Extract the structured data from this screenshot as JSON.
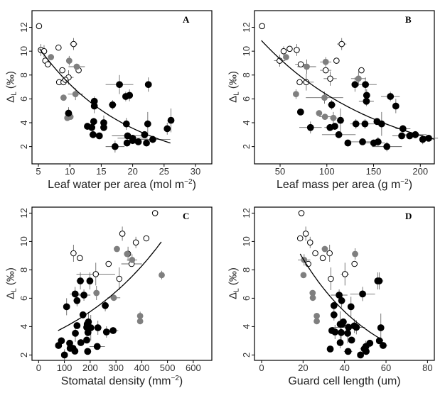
{
  "chart_data": [
    {
      "panel": "A",
      "type": "scatter",
      "xlabel": {
        "pre": "Leaf water per area (mol m",
        "sup": "−2",
        "post": ")"
      },
      "ylabel": {
        "main": "Δ",
        "sub": "L",
        "unit": "(‰)"
      },
      "xlim": [
        3.98,
        32.6
      ],
      "ylim": [
        0.55,
        13.4
      ],
      "xticks": [
        5,
        10,
        15,
        20,
        25,
        30
      ],
      "yticks": [
        2,
        4,
        6,
        8,
        10,
        12
      ],
      "fit": {
        "type": "exponential",
        "a": 14.8,
        "b": -0.0716,
        "x_range": [
          5.2,
          26
        ]
      },
      "points": {
        "open": [
          [
            5.1,
            12.1
          ],
          [
            5.4,
            10.1,
            0,
            0.5
          ],
          [
            5.9,
            10.0,
            0.5,
            0.5
          ],
          [
            6.1,
            9.2
          ],
          [
            6.5,
            8.9
          ],
          [
            8.2,
            10.3
          ],
          [
            10.6,
            10.6,
            0.6,
            0.5
          ],
          [
            8.8,
            8.4
          ],
          [
            11.4,
            8.4
          ],
          [
            8.3,
            7.4
          ],
          [
            9.0,
            7.4
          ],
          [
            9.8,
            7.8,
            0.8,
            0.6
          ],
          [
            9.3,
            7.6
          ]
        ],
        "gray": [
          [
            7.0,
            9.5
          ],
          [
            9.9,
            9.2,
            0,
            0.4
          ],
          [
            11.1,
            8.7,
            1.3,
            0
          ],
          [
            9.0,
            6.1
          ],
          [
            10.9,
            6.4,
            1.2,
            0.5
          ],
          [
            9.6,
            4.4
          ],
          [
            10.1,
            4.5
          ]
        ],
        "black": [
          [
            9.8,
            4.8,
            0.6,
            0.5
          ],
          [
            17.9,
            7.2,
            2.2,
            0.8
          ],
          [
            22.5,
            7.2,
            0,
            0.6
          ],
          [
            18.9,
            6.2,
            0,
            0.4
          ],
          [
            19.5,
            6.3,
            0,
            0.5
          ],
          [
            16.8,
            5.5,
            0.6,
            0.4
          ],
          [
            13.9,
            5.8,
            0,
            0.4
          ],
          [
            13.9,
            5.4,
            0,
            0.6
          ],
          [
            12.8,
            3.7
          ],
          [
            13.5,
            3.6
          ],
          [
            13.8,
            4.1
          ],
          [
            13.7,
            3.0,
            0.6,
            0
          ],
          [
            14.7,
            2.9
          ],
          [
            15.4,
            4.0,
            0.5,
            0.6
          ],
          [
            15.4,
            3.6
          ],
          [
            17.2,
            2.0,
            1.5,
            0.5
          ],
          [
            19.0,
            3.9,
            0,
            0.5
          ],
          [
            19.2,
            2.9,
            2.5,
            0
          ],
          [
            19.1,
            2.3
          ],
          [
            20.0,
            2.7,
            2.4,
            0
          ],
          [
            20.0,
            2.5
          ],
          [
            20.9,
            2.4
          ],
          [
            21.9,
            3.0
          ],
          [
            22.4,
            3.9,
            0,
            1.0
          ],
          [
            22.2,
            2.3
          ],
          [
            23.2,
            2.6,
            2.8,
            0.3
          ],
          [
            25.5,
            3.5,
            0,
            0.5
          ],
          [
            26.1,
            4.2,
            0,
            1.0
          ]
        ]
      }
    },
    {
      "panel": "B",
      "type": "scatter",
      "xlabel": {
        "pre": "Leaf mass per area (g m",
        "sup": "−2",
        "post": ")"
      },
      "ylabel": {
        "main": "Δ",
        "sub": "L",
        "unit": "(‰)"
      },
      "xlim": [
        22.6,
        215
      ],
      "ylim": [
        0.55,
        13.4
      ],
      "xticks": [
        50,
        100,
        150,
        200
      ],
      "yticks": [
        2,
        4,
        6,
        8,
        10,
        12
      ],
      "fit": {
        "type": "exponential",
        "a": 13.73,
        "b": -0.00771,
        "x_range": [
          30,
          215
        ]
      },
      "points": {
        "open": [
          [
            30.7,
            12.1
          ],
          [
            49.5,
            9.2,
            6,
            0.5
          ],
          [
            53.8,
            10.0,
            0,
            0.4
          ],
          [
            60.2,
            10.2
          ],
          [
            67.8,
            10.1,
            0,
            0.5
          ],
          [
            72.1,
            8.9,
            6,
            0
          ],
          [
            115.9,
            10.6,
            5,
            0.5
          ],
          [
            110.3,
            9.2
          ],
          [
            98.8,
            8.4,
            6,
            0
          ],
          [
            103.6,
            7.7,
            7,
            0.6
          ],
          [
            137,
            8.4
          ],
          [
            70.9,
            7.4
          ],
          [
            78,
            7.4,
            8,
            0.7
          ]
        ],
        "gray": [
          [
            56.4,
            9.5
          ],
          [
            98.8,
            9.1,
            6,
            0.4
          ],
          [
            78.5,
            8.7,
            10,
            0.6
          ],
          [
            67,
            6.4,
            0,
            0.4
          ],
          [
            97.5,
            6.1,
            20,
            0.5
          ],
          [
            91.7,
            4.8
          ],
          [
            98,
            4.5,
            6,
            0
          ],
          [
            107,
            4.4,
            4,
            0.5
          ],
          [
            133.9,
            7.7,
            8,
            0.6
          ]
        ],
        "black": [
          [
            71.9,
            4.9
          ],
          [
            82.5,
            3.6,
            12,
            0.5
          ],
          [
            130.1,
            7.2,
            0,
            0.6
          ],
          [
            141.3,
            7.2,
            12,
            0.6
          ],
          [
            142.6,
            6.3,
            0,
            0.5
          ],
          [
            142.3,
            5.8,
            8,
            0.4
          ],
          [
            105.2,
            5.5,
            4,
            0.4
          ],
          [
            103.4,
            3.6,
            6,
            0
          ],
          [
            108.5,
            3.7
          ],
          [
            114.6,
            4.2,
            4,
            1.0
          ],
          [
            112.8,
            3.0,
            18,
            0
          ],
          [
            122.5,
            2.3
          ],
          [
            131.1,
            3.9,
            6,
            0.4
          ],
          [
            140.8,
            3.9,
            10,
            0.4
          ],
          [
            138.2,
            2.4,
            18,
            0
          ],
          [
            153.7,
            4.1
          ],
          [
            158.6,
            3.9,
            0,
            1.0
          ],
          [
            150.2,
            2.3,
            12,
            0
          ],
          [
            154.8,
            2.4,
            0,
            0.4
          ],
          [
            164.2,
            2.0,
            16,
            0.4
          ],
          [
            168,
            6.2,
            10,
            0.4
          ],
          [
            173.8,
            5.4,
            0,
            0.6
          ],
          [
            181.4,
            3.5,
            8,
            0.3
          ],
          [
            180.1,
            2.9,
            10,
            0
          ],
          [
            188.6,
            2.9
          ],
          [
            194.7,
            3.0,
            12,
            0
          ],
          [
            202.6,
            2.6,
            0,
            0.4
          ],
          [
            208.9,
            2.7,
            10,
            0
          ]
        ]
      }
    },
    {
      "panel": "C",
      "type": "scatter",
      "xlabel": {
        "pre": "Stomatal density (mm",
        "sup": "−2",
        "post": ")"
      },
      "ylabel": {
        "main": "Δ",
        "sub": "L",
        "unit": "(‰)"
      },
      "xlim": [
        -25.7,
        672
      ],
      "ylim": [
        1.62,
        12.42
      ],
      "xticks": [
        0,
        100,
        200,
        300,
        400,
        500,
        600
      ],
      "yticks": [
        2,
        4,
        6,
        8,
        10,
        12
      ],
      "fit": {
        "type": "exponential",
        "a": 3.089,
        "b": 0.002462,
        "x_range": [
          75.5,
          476
        ]
      },
      "points": {
        "open": [
          [
            451.8,
            12.0
          ],
          [
            324.8,
            10.55,
            0,
            0.5
          ],
          [
            377.3,
            9.93,
            0,
            0.4
          ],
          [
            417.8,
            10.22
          ],
          [
            135.3,
            9.17,
            0,
            0.6
          ],
          [
            160.1,
            8.83
          ],
          [
            271.5,
            8.42
          ],
          [
            360.7,
            8.42,
            40,
            0
          ],
          [
            221.8,
            7.7,
            75,
            0.8
          ],
          [
            312.9,
            7.37,
            0,
            0.8
          ],
          [
            346.9,
            9.13,
            0,
            0.5
          ]
        ],
        "gray": [
          [
            303.7,
            9.47
          ],
          [
            362.6,
            8.7,
            20,
            0.4
          ],
          [
            224.5,
            6.37,
            0,
            0.5
          ],
          [
            291.7,
            6.03,
            25,
            0
          ],
          [
            477.6,
            7.63,
            0,
            0.3
          ],
          [
            393.8,
            4.75,
            0,
            0.3
          ],
          [
            393.8,
            4.38
          ],
          [
            343.2,
            9.12
          ]
        ],
        "black": [
          [
            108.6,
            5.4,
            0,
            0.6
          ],
          [
            162,
            7.22,
            15,
            0.6
          ],
          [
            198.8,
            7.22,
            0,
            0.6
          ],
          [
            141.7,
            6.3,
            20,
            0.5
          ],
          [
            149,
            5.83,
            0,
            0.4
          ],
          [
            175.8,
            6.22,
            25,
            0.4
          ],
          [
            258.6,
            5.48,
            0,
            0.4
          ],
          [
            172.1,
            4.83
          ],
          [
            149,
            4.07
          ],
          [
            188.6,
            4.17
          ],
          [
            193.2,
            4.33,
            0,
            0.7
          ],
          [
            186.7,
            3.95
          ],
          [
            202.4,
            3.92,
            0,
            0.9
          ],
          [
            230,
            3.92,
            15,
            0.5
          ],
          [
            142.6,
            3.53,
            0,
            0.6
          ],
          [
            191.4,
            3.58
          ],
          [
            263.2,
            3.62,
            0,
            0.4
          ],
          [
            289,
            3.72,
            20,
            0
          ],
          [
            77.3,
            2.67
          ],
          [
            88.3,
            3.0
          ],
          [
            120.5,
            2.83
          ],
          [
            122.3,
            2.47
          ],
          [
            133.4,
            2.47
          ],
          [
            140.8,
            2.27
          ],
          [
            163.8,
            2.87
          ],
          [
            186.7,
            3.05
          ],
          [
            190.3,
            2.25
          ],
          [
            227.3,
            2.6,
            30,
            0
          ],
          [
            100.3,
            2.0,
            0,
            0.4
          ]
        ]
      }
    },
    {
      "panel": "D",
      "type": "scatter",
      "xlabel": {
        "pre": "Guard cell length (um)",
        "sup": "",
        "post": ""
      },
      "ylabel": {
        "main": "Δ",
        "sub": "L",
        "unit": "(‰)"
      },
      "xlim": [
        -3.43,
        83.3
      ],
      "ylim": [
        1.62,
        12.42
      ],
      "xticks": [
        0,
        20,
        40,
        60,
        80
      ],
      "yticks": [
        2,
        4,
        6,
        8,
        10,
        12
      ],
      "fit": {
        "type": "exponential",
        "a": 15.23,
        "b": -0.02755,
        "x_range": [
          18.6,
          58.6
        ]
      },
      "points": {
        "open": [
          [
            19.2,
            12.0
          ],
          [
            21.3,
            10.55,
            0,
            0.5
          ],
          [
            18.6,
            10.22
          ],
          [
            23.4,
            9.93,
            0,
            0.4
          ],
          [
            25.9,
            9.17
          ],
          [
            29.5,
            8.83
          ],
          [
            32.8,
            9.17,
            0,
            0.6
          ],
          [
            22.5,
            8.42
          ],
          [
            44.8,
            8.42
          ],
          [
            40.2,
            7.7,
            2,
            0.8
          ],
          [
            33.4,
            7.37,
            0,
            0.8
          ]
        ],
        "gray": [
          [
            30.5,
            9.47
          ],
          [
            20.5,
            8.7,
            3,
            0.4
          ],
          [
            45.1,
            9.12,
            0,
            0.4
          ],
          [
            20.2,
            7.63
          ],
          [
            24.6,
            6.37
          ],
          [
            24.7,
            6.03
          ],
          [
            26.6,
            4.75
          ],
          [
            26.6,
            4.38
          ]
        ],
        "black": [
          [
            56,
            7.22,
            0,
            0.6
          ],
          [
            56.7,
            7.22,
            2,
            0.6
          ],
          [
            48.7,
            6.3,
            6,
            0.5
          ],
          [
            37.4,
            6.22,
            4,
            0.4
          ],
          [
            38.6,
            5.83,
            0,
            0.5
          ],
          [
            34.9,
            5.48
          ],
          [
            43.1,
            5.4,
            0,
            0.7
          ],
          [
            34.9,
            4.83,
            0,
            0.4
          ],
          [
            37.9,
            4.17,
            0,
            0.9
          ],
          [
            39.4,
            4.33
          ],
          [
            38.9,
            4.17
          ],
          [
            41.9,
            3.95,
            8,
            0
          ],
          [
            44.7,
            4.05,
            0,
            0.5
          ],
          [
            45.7,
            3.95,
            0,
            0.5
          ],
          [
            57.5,
            3.92,
            0,
            1.0
          ],
          [
            33.9,
            3.72
          ],
          [
            35.4,
            3.62,
            0,
            0.5
          ],
          [
            38.4,
            3.58,
            0,
            0.5
          ],
          [
            41.5,
            3.53,
            0,
            0.7
          ],
          [
            43.4,
            3.05
          ],
          [
            37.9,
            2.87,
            0,
            0.4
          ],
          [
            33.1,
            2.42
          ],
          [
            41.7,
            2.25,
            2,
            0
          ],
          [
            47.7,
            2.0
          ],
          [
            49.5,
            2.43,
            2,
            0
          ],
          [
            50.3,
            2.6,
            0,
            0.4
          ],
          [
            50.4,
            2.25
          ],
          [
            52.2,
            2.83
          ],
          [
            56.8,
            3.0
          ],
          [
            58.6,
            2.67,
            2,
            0
          ]
        ]
      }
    }
  ],
  "colors": {
    "open_fill": "#ffffff",
    "gray": "#7f7f7f",
    "black": "#000000",
    "errorbar": "#6a6a6a"
  }
}
